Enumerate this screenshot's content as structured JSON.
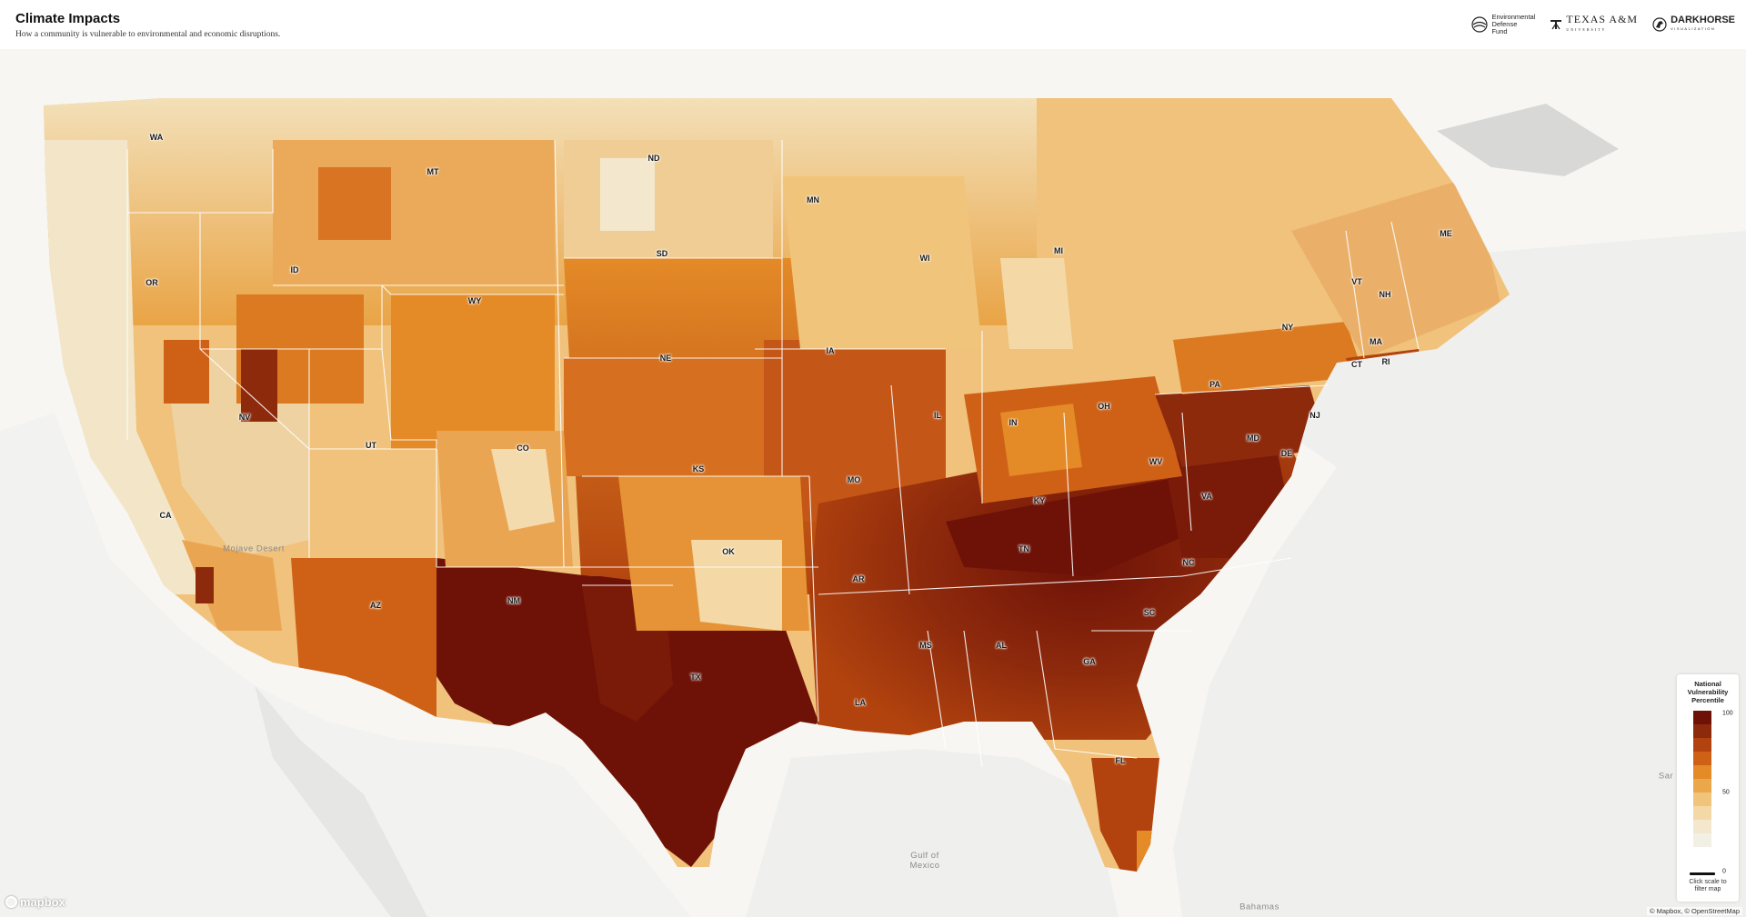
{
  "header": {
    "title": "Climate Impacts",
    "subtitle": "How a community is vulnerable to environmental and economic disruptions.",
    "logos": {
      "edf": "Environmental\nDefense\nFund",
      "tamu": "TEXAS A&M",
      "tamu_sub": "UNIVERSITY",
      "darkhorse": "DARKHORSE",
      "darkhorse_sub": "VISUALIZATION"
    }
  },
  "map": {
    "state_labels": [
      "WA",
      "MT",
      "ND",
      "MN",
      "OR",
      "ID",
      "SD",
      "WI",
      "MI",
      "ME",
      "WY",
      "VT",
      "NH",
      "NY",
      "MA",
      "CT",
      "RI",
      "NE",
      "IA",
      "PA",
      "NJ",
      "NV",
      "UT",
      "IL",
      "IN",
      "OH",
      "CO",
      "KS",
      "MO",
      "MD",
      "DE",
      "WV",
      "VA",
      "CA",
      "KY",
      "OK",
      "AR",
      "TN",
      "NC",
      "AZ",
      "NM",
      "SC",
      "MS",
      "AL",
      "GA",
      "TX",
      "LA",
      "FL"
    ],
    "geo_labels": [
      "Mojave Desert",
      "Gulf of\nMexico",
      "Bahamas",
      "Sar"
    ],
    "colors": {
      "land": "#f7f6f3",
      "water": "#d4d4d2",
      "background": "#f2f2f0",
      "border": "#ffffff"
    }
  },
  "legend": {
    "title": "National\nVulnerability\nPercentile",
    "ticks": [
      "100",
      "50",
      "0"
    ],
    "colors": [
      "#6e1208",
      "#8e2a0c",
      "#b2430e",
      "#cf6117",
      "#e48a27",
      "#eba84b",
      "#f1c47b",
      "#f4d9a6",
      "#f3e8cd",
      "#f2efe4"
    ],
    "note": "Click scale to\nfilter map"
  },
  "footer": {
    "mapbox": "mapbox",
    "attribution": "© Mapbox, © OpenStreetMap"
  }
}
